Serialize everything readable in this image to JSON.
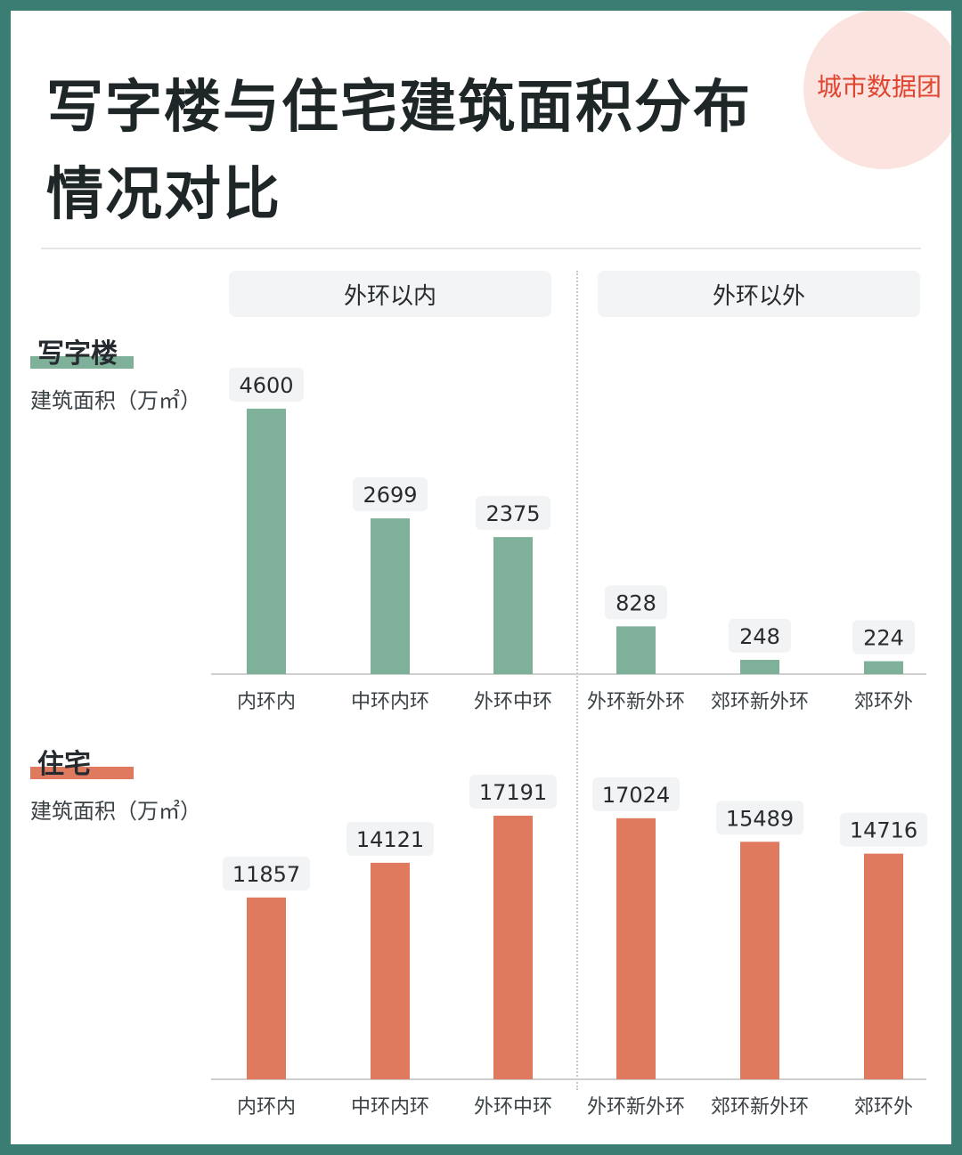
{
  "title_line1": "写字楼与住宅建筑面积分布",
  "title_line2": "情况对比",
  "brand": "城市数据团",
  "zones": {
    "inner": "外环以内",
    "outer": "外环以外"
  },
  "colors": {
    "office": "#7fb09a",
    "residential": "#e07a5e",
    "label_bg": "#f2f3f4",
    "brand": "#e0442e"
  },
  "chart_data": [
    {
      "type": "bar",
      "title": "写字楼",
      "ylabel": "建筑面积（万㎡）",
      "categories": [
        "内环内",
        "中环内环",
        "外环中环",
        "外环新外环",
        "郊环新外环",
        "郊环外"
      ],
      "values": [
        4600,
        2699,
        2375,
        828,
        248,
        224
      ]
    },
    {
      "type": "bar",
      "title": "住宅",
      "ylabel": "建筑面积（万㎡）",
      "categories": [
        "内环内",
        "中环内环",
        "外环中环",
        "外环新外环",
        "郊环新外环",
        "郊环外"
      ],
      "values": [
        11857,
        14121,
        17191,
        17024,
        15489,
        14716
      ]
    }
  ]
}
